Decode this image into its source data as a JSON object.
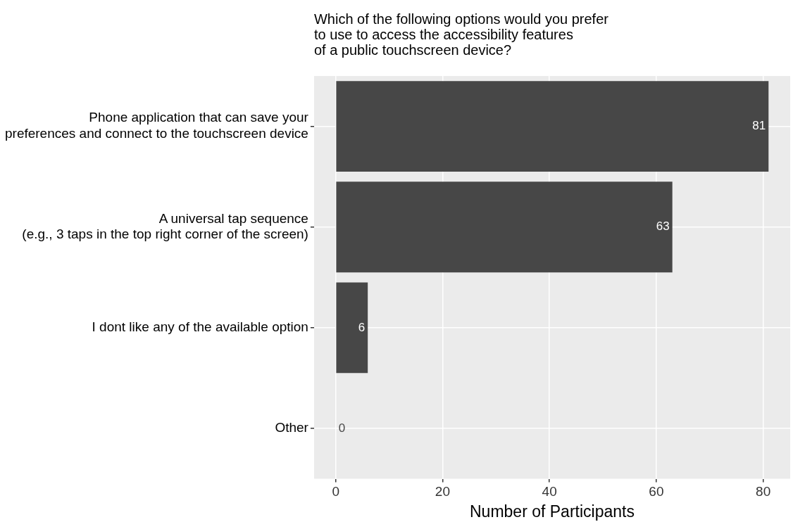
{
  "chart_data": {
    "type": "bar",
    "orientation": "horizontal",
    "title": "Which of the following options would you prefer\nto use to access the accessibility features\nof a public touchscreen device?",
    "xlabel": "Number of Participants",
    "categories": [
      "Phone application that can save your\npreferences and connect to the touchscreen device",
      "A universal tap sequence\n(e.g., 3 taps in the top right corner of the screen)",
      "I dont like any of the available option",
      "Other"
    ],
    "values": [
      81,
      63,
      6,
      0
    ],
    "color": "#474747",
    "xlim": [
      -4.05,
      85.05
    ],
    "xticks": [
      0,
      20,
      40,
      60,
      80
    ],
    "grid": true,
    "data_labels": true,
    "legend": false
  }
}
